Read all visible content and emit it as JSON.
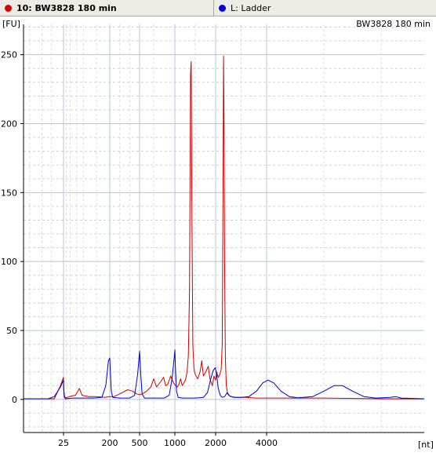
{
  "tabs": [
    {
      "label": "10: BW3828 180 min",
      "dot_color": "#dd0000",
      "bold": true
    },
    {
      "label": "L: Ladder",
      "dot_color": "#0000dd",
      "bold": false
    }
  ],
  "chart_data": {
    "type": "line",
    "title": "BW3828 180 min",
    "ylabel": "[FU]",
    "xlabel": "[nt]",
    "ylim": [
      -24,
      272
    ],
    "y_ticks": [
      0,
      50,
      100,
      150,
      200,
      250
    ],
    "x_ticks": [
      25,
      200,
      500,
      1000,
      2000,
      4000
    ],
    "grid": true,
    "series": [
      {
        "name": "10: BW3828 180 min",
        "color": "#cc0000",
        "points": [
          [
            12,
            0.5
          ],
          [
            22,
            0.5
          ],
          [
            24,
            10
          ],
          [
            25,
            16
          ],
          [
            26,
            8
          ],
          [
            28,
            3
          ],
          [
            32,
            1
          ],
          [
            40,
            1.5
          ],
          [
            55,
            2.5
          ],
          [
            70,
            3
          ],
          [
            85,
            8
          ],
          [
            95,
            3
          ],
          [
            120,
            2
          ],
          [
            150,
            2
          ],
          [
            180,
            1.5
          ],
          [
            200,
            2
          ],
          [
            240,
            2
          ],
          [
            300,
            4
          ],
          [
            380,
            7
          ],
          [
            430,
            6
          ],
          [
            470,
            4
          ],
          [
            500,
            3.5
          ],
          [
            540,
            4
          ],
          [
            600,
            6
          ],
          [
            660,
            9
          ],
          [
            700,
            15
          ],
          [
            740,
            9
          ],
          [
            800,
            13
          ],
          [
            840,
            16
          ],
          [
            870,
            10
          ],
          [
            900,
            11
          ],
          [
            940,
            17
          ],
          [
            980,
            12
          ],
          [
            1020,
            10
          ],
          [
            1060,
            9
          ],
          [
            1100,
            11
          ],
          [
            1140,
            15
          ],
          [
            1180,
            10
          ],
          [
            1220,
            12
          ],
          [
            1260,
            14
          ],
          [
            1300,
            20
          ],
          [
            1330,
            32
          ],
          [
            1360,
            80
          ],
          [
            1385,
            235
          ],
          [
            1400,
            245
          ],
          [
            1415,
            150
          ],
          [
            1440,
            40
          ],
          [
            1470,
            22
          ],
          [
            1500,
            18
          ],
          [
            1560,
            15
          ],
          [
            1620,
            20
          ],
          [
            1660,
            28
          ],
          [
            1700,
            17
          ],
          [
            1760,
            20
          ],
          [
            1820,
            24
          ],
          [
            1860,
            15
          ],
          [
            1920,
            10
          ],
          [
            1960,
            17
          ],
          [
            2000,
            14
          ],
          [
            2040,
            20
          ],
          [
            2100,
            16
          ],
          [
            2160,
            18
          ],
          [
            2220,
            22
          ],
          [
            2260,
            40
          ],
          [
            2290,
            150
          ],
          [
            2310,
            249
          ],
          [
            2330,
            200
          ],
          [
            2350,
            100
          ],
          [
            2380,
            30
          ],
          [
            2420,
            10
          ],
          [
            2470,
            4
          ],
          [
            2520,
            3
          ],
          [
            2600,
            2
          ],
          [
            2800,
            1.5
          ],
          [
            3200,
            1.5
          ],
          [
            3600,
            1
          ],
          [
            4200,
            1
          ],
          [
            5000,
            1
          ],
          [
            6000,
            1
          ],
          [
            8000,
            0.5
          ],
          [
            9500,
            0.5
          ]
        ]
      },
      {
        "name": "L: Ladder",
        "color": "#0000cc",
        "points": [
          [
            12,
            0.5
          ],
          [
            20,
            0.5
          ],
          [
            22,
            2
          ],
          [
            24,
            9
          ],
          [
            25,
            14
          ],
          [
            26,
            7
          ],
          [
            28,
            2
          ],
          [
            32,
            0.5
          ],
          [
            60,
            1
          ],
          [
            100,
            1
          ],
          [
            140,
            1
          ],
          [
            170,
            1.5
          ],
          [
            185,
            10
          ],
          [
            195,
            28
          ],
          [
            200,
            30
          ],
          [
            205,
            22
          ],
          [
            215,
            6
          ],
          [
            230,
            1.5
          ],
          [
            300,
            1
          ],
          [
            400,
            1
          ],
          [
            450,
            3
          ],
          [
            480,
            18
          ],
          [
            500,
            35
          ],
          [
            515,
            20
          ],
          [
            535,
            4
          ],
          [
            570,
            1
          ],
          [
            700,
            1
          ],
          [
            850,
            1
          ],
          [
            920,
            3
          ],
          [
            960,
            15
          ],
          [
            990,
            30
          ],
          [
            1000,
            36
          ],
          [
            1015,
            22
          ],
          [
            1040,
            6
          ],
          [
            1080,
            1.5
          ],
          [
            1200,
            1
          ],
          [
            1500,
            1
          ],
          [
            1700,
            1.5
          ],
          [
            1800,
            5
          ],
          [
            1880,
            15
          ],
          [
            1940,
            21
          ],
          [
            1990,
            23
          ],
          [
            2040,
            18
          ],
          [
            2100,
            8
          ],
          [
            2180,
            3
          ],
          [
            2260,
            1.5
          ],
          [
            2350,
            2
          ],
          [
            2450,
            5
          ],
          [
            2550,
            2.5
          ],
          [
            2700,
            1.5
          ],
          [
            3000,
            1.5
          ],
          [
            3300,
            2
          ],
          [
            3600,
            6
          ],
          [
            3850,
            12
          ],
          [
            4050,
            14
          ],
          [
            4250,
            12
          ],
          [
            4500,
            6
          ],
          [
            4800,
            2
          ],
          [
            5100,
            1.2
          ],
          [
            5600,
            2
          ],
          [
            6000,
            6
          ],
          [
            6350,
            10
          ],
          [
            6650,
            10
          ],
          [
            7000,
            6
          ],
          [
            7400,
            2
          ],
          [
            7800,
            1
          ],
          [
            8300,
            1.5
          ],
          [
            8500,
            2
          ],
          [
            8700,
            1
          ],
          [
            9500,
            0.5
          ]
        ]
      }
    ]
  }
}
